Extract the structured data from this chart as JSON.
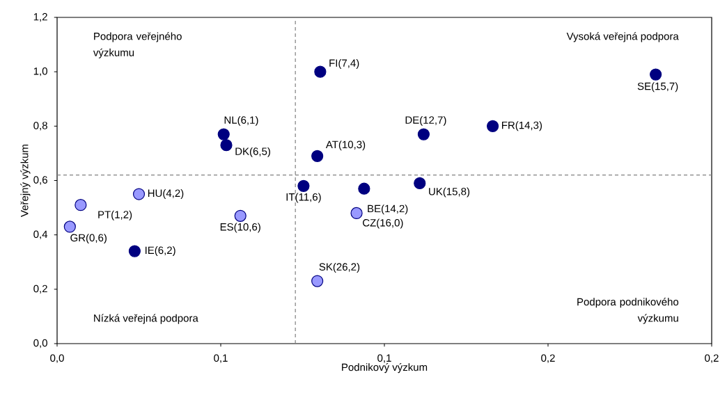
{
  "chart_data": {
    "type": "scatter",
    "xlabel": "Podnikový výzkum",
    "ylabel": "Veřejný výzkum",
    "xlim": [
      0,
      0.2
    ],
    "ylim": [
      0,
      1.2
    ],
    "xticks": [
      {
        "value": 0,
        "label": "0,0"
      },
      {
        "value": 0.05,
        "label": "0,1"
      },
      {
        "value": 0.1,
        "label": "0,1"
      },
      {
        "value": 0.15,
        "label": "0,2"
      },
      {
        "value": 0.2,
        "label": "0,2"
      }
    ],
    "yticks": [
      {
        "value": 0,
        "label": "0,0"
      },
      {
        "value": 0.2,
        "label": "0,2"
      },
      {
        "value": 0.4,
        "label": "0,4"
      },
      {
        "value": 0.6,
        "label": "0,6"
      },
      {
        "value": 0.8,
        "label": "0,8"
      },
      {
        "value": 1.0,
        "label": "1,0"
      },
      {
        "value": 1.2,
        "label": "1,2"
      }
    ],
    "marker": "circle",
    "grid": false,
    "series": [
      {
        "color": "#000080",
        "x": [
          0.0804,
          0.1829,
          0.0509,
          0.0517,
          0.0795,
          0.112,
          0.1331,
          0.0753,
          0.0938,
          0.1108,
          0.0237
        ],
        "values": [
          1.0,
          0.99,
          0.77,
          0.73,
          0.69,
          0.77,
          0.8,
          0.58,
          0.57,
          0.59,
          0.34
        ]
      },
      {
        "color": "#9999ff",
        "x": [
          0.0915,
          0.0795,
          0.056,
          0.025,
          0.0072,
          0.0039
        ],
        "values": [
          0.48,
          0.23,
          0.47,
          0.55,
          0.51,
          0.43
        ]
      }
    ],
    "ref_lines": [
      {
        "axis": "x",
        "value": 0.0728,
        "color": "#808080",
        "line_style": "dashed"
      },
      {
        "axis": "y",
        "value": 0.62,
        "color": "#808080",
        "line_style": "dashed"
      }
    ],
    "annotations": [
      "Podpora veřejného výzkumu",
      "Vysoká veřejná podpora",
      "Nízká veřejná podpora",
      "Podpora podnikového výzkumu",
      {
        "text": "FI(7,4)",
        "x": 0.0804,
        "y": 1.0
      },
      {
        "text": "SE(15,7)",
        "x": 0.1829,
        "y": 0.99
      },
      {
        "text": "NL(6,1)",
        "x": 0.0509,
        "y": 0.77
      },
      {
        "text": "DK(6,5)",
        "x": 0.0517,
        "y": 0.73
      },
      {
        "text": "AT(10,3)",
        "x": 0.0795,
        "y": 0.69
      },
      {
        "text": "DE(12,7)",
        "x": 0.112,
        "y": 0.77
      },
      {
        "text": "FR(14,3)",
        "x": 0.1331,
        "y": 0.8
      },
      {
        "text": "IT(11,6)",
        "x": 0.0753,
        "y": 0.58
      },
      {
        "text": "BE(14,2)",
        "x": 0.0938,
        "y": 0.57
      },
      {
        "text": "UK(15,8)",
        "x": 0.1108,
        "y": 0.59
      },
      {
        "text": "IE(6,2)",
        "x": 0.0237,
        "y": 0.34
      },
      {
        "text": "CZ(16,0)",
        "x": 0.0915,
        "y": 0.48
      },
      {
        "text": "SK(26,2)",
        "x": 0.0795,
        "y": 0.23
      },
      {
        "text": "ES(10,6)",
        "x": 0.056,
        "y": 0.47
      },
      {
        "text": "HU(4,2)",
        "x": 0.025,
        "y": 0.55
      },
      {
        "text": "PT(1,2)",
        "x": 0.0072,
        "y": 0.51
      },
      {
        "text": "GR(0,6)",
        "x": 0.0039,
        "y": 0.43
      }
    ]
  }
}
